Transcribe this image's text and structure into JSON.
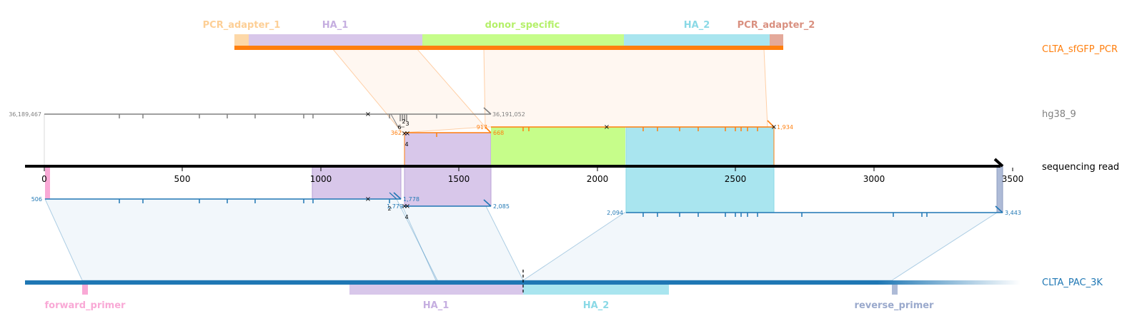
{
  "colors": {
    "pcr_track": "#ff7f0e",
    "ref_track": "#808080",
    "read_track": "#000000",
    "target_track": "#1f77b4",
    "pcr_adapter_1": "#fdd8a8",
    "ha_1": "#d8c7ea",
    "donor_specific": "#c6fd8a",
    "ha_2": "#a9e5ef",
    "pcr_adapter_2": "#e4a99a",
    "forward_primer": "#f9a9d6",
    "reverse_primer": "#aebbd7"
  },
  "top_features": {
    "pcr_adapter_1": "PCR_adapter_1",
    "ha_1": "HA_1",
    "donor_specific": "donor_specific",
    "ha_2": "HA_2",
    "pcr_adapter_2": "PCR_adapter_2"
  },
  "bottom_features": {
    "forward_primer": "forward_primer",
    "ha_1": "HA_1",
    "ha_2": "HA_2",
    "reverse_primer": "reverse_primer"
  },
  "tracks": {
    "pcr": "CLTA_sfGFP_PCR",
    "ref": "hg38_9",
    "read": "sequencing read",
    "target": "CLTA_PAC_3K"
  },
  "axis": {
    "ticks": [
      "0",
      "500",
      "1000",
      "1500",
      "2000",
      "2500",
      "3000",
      "3500"
    ]
  },
  "coords": {
    "ref_start": "36,189,467",
    "ref_end": "36,191,052",
    "donor_a_start": "362",
    "donor_a_end": "668",
    "donor_b_start": "917",
    "donor_b_end": "1,934",
    "tgt_a_start": "506",
    "tgt_a_end": "1,778",
    "tgt_b_start": "1,779",
    "tgt_b_end": "2,085",
    "tgt_c_start": "2,094",
    "tgt_c_end": "3,443"
  },
  "small_labels": {
    "ref_6": "6",
    "ref_3": "3",
    "ref_2": "2",
    "donor_4": "4",
    "tgt_2": "2",
    "tgt_4": "4"
  }
}
